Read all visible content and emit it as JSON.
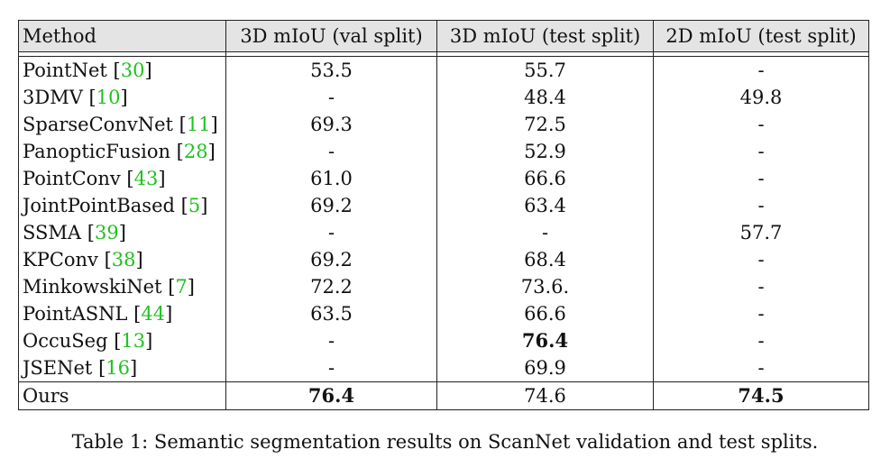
{
  "table": {
    "headers": [
      "Method",
      "3D mIoU (val split)",
      "3D mIoU (test split)",
      "2D mIoU (test split)"
    ],
    "rows": [
      {
        "method": "PointNet",
        "ref": "30",
        "val3d": "53.5",
        "test3d": "55.7",
        "test2d": "-"
      },
      {
        "method": "3DMV",
        "ref": "10",
        "val3d": "-",
        "test3d": "48.4",
        "test2d": "49.8"
      },
      {
        "method": "SparseConvNet",
        "ref": "11",
        "val3d": "69.3",
        "test3d": "72.5",
        "test2d": "-"
      },
      {
        "method": "PanopticFusion",
        "ref": "28",
        "val3d": "-",
        "test3d": "52.9",
        "test2d": "-"
      },
      {
        "method": "PointConv",
        "ref": "43",
        "val3d": "61.0",
        "test3d": "66.6",
        "test2d": "-"
      },
      {
        "method": "JointPointBased",
        "ref": "5",
        "val3d": "69.2",
        "test3d": "63.4",
        "test2d": "-"
      },
      {
        "method": "SSMA",
        "ref": "39",
        "val3d": "-",
        "test3d": "-",
        "test2d": "57.7"
      },
      {
        "method": "KPConv",
        "ref": "38",
        "val3d": "69.2",
        "test3d": "68.4",
        "test2d": "-"
      },
      {
        "method": "MinkowskiNet",
        "ref": "7",
        "val3d": "72.2",
        "test3d": "73.6.",
        "test2d": "-"
      },
      {
        "method": "PointASNL",
        "ref": "44",
        "val3d": "63.5",
        "test3d": "66.6",
        "test2d": "-"
      },
      {
        "method": "OccuSeg",
        "ref": "13",
        "val3d": "-",
        "test3d": "76.4",
        "test2d": "-"
      },
      {
        "method": "JSENet",
        "ref": "16",
        "val3d": "-",
        "test3d": "69.9",
        "test2d": "-"
      }
    ],
    "ours": {
      "method": "Ours",
      "val3d": "76.4",
      "test3d": "74.6",
      "test2d": "74.5"
    }
  },
  "caption": "Table 1: Semantic segmentation results on ScanNet validation and test splits.",
  "colors": {
    "citation": "#1ec21e",
    "header_bg": "#e4e4e4"
  }
}
